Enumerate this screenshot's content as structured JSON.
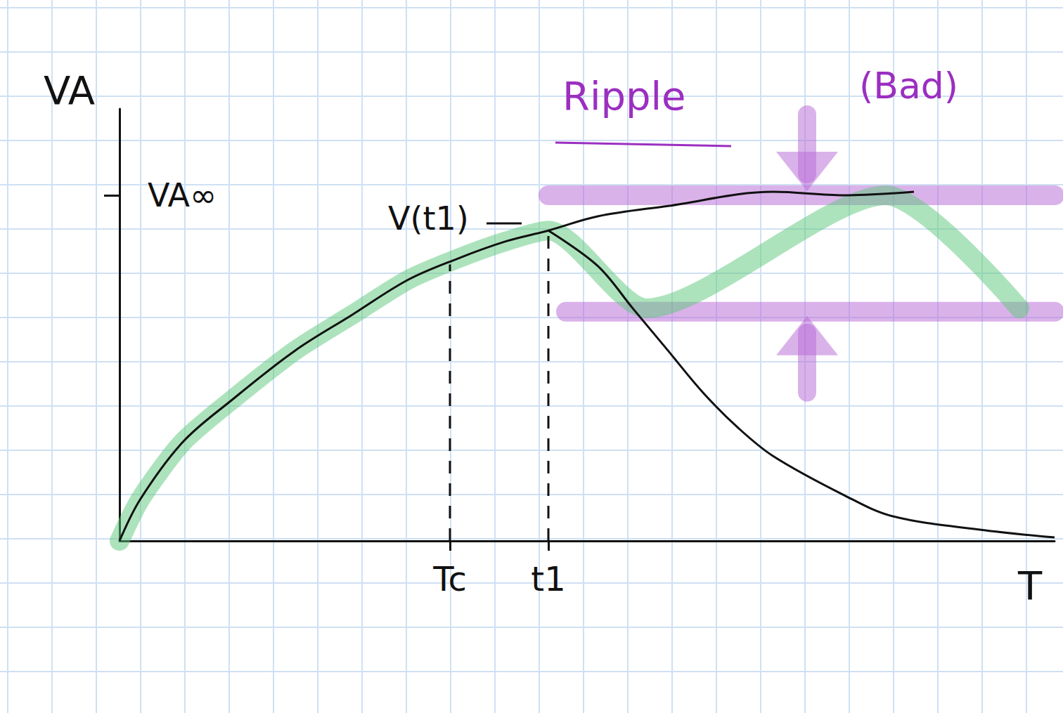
{
  "chart_data": {
    "type": "line",
    "x_label": "T",
    "y_label": "VA",
    "xlim": [
      0,
      13.3
    ],
    "ylim": [
      0,
      1.25
    ],
    "xticks": [
      {
        "value": 4.7,
        "label": "Tc"
      },
      {
        "value": 6.1,
        "label": "t1"
      }
    ],
    "yticks": [
      {
        "value": 1,
        "label": "VA∞"
      }
    ],
    "grid": false,
    "legend": false,
    "annotations": [
      {
        "text": "V(t1)",
        "color": "#111111"
      },
      {
        "text": "Ripple",
        "color": "#9b2fc0"
      },
      {
        "text": "(Bad)",
        "color": "#9b2fc0"
      }
    ],
    "series": [
      {
        "color": "#b566d6",
        "line_style": "highlight",
        "marker": "arrow_down",
        "x": [
          6.1,
          13.3
        ],
        "values": [
          1.0,
          1.0
        ]
      },
      {
        "color": "#b566d6",
        "line_style": "highlight",
        "marker": "arrow_up",
        "x": [
          6.35,
          13.3
        ],
        "values": [
          0.663,
          0.663
        ]
      },
      {
        "color": "#5cc87a",
        "line_style": "highlight",
        "marker": "none",
        "x": [
          0,
          0.3,
          0.9,
          1.6,
          2.5,
          3.3,
          4.1,
          4.8,
          5.5,
          6.1,
          7.5,
          10.9,
          12.8
        ],
        "values": [
          0,
          0.122,
          0.286,
          0.408,
          0.551,
          0.653,
          0.755,
          0.816,
          0.867,
          0.898,
          0.673,
          1.0,
          0.673
        ]
      },
      {
        "color": "#111111",
        "line_style": "dashed",
        "marker": "none",
        "x": [
          4.7,
          4.7
        ],
        "values": [
          0,
          0.8
        ]
      },
      {
        "color": "#111111",
        "line_style": "dashed",
        "marker": "none",
        "x": [
          6.1,
          6.1
        ],
        "values": [
          0,
          0.898
        ]
      },
      {
        "color": "#111111",
        "line_style": "solid",
        "marker": "none",
        "x": [
          0,
          0.3,
          0.9,
          1.6,
          2.5,
          3.3,
          4.1,
          4.8,
          5.5,
          6.1,
          6.8,
          7.8,
          9.3,
          10.3,
          11.3
        ],
        "values": [
          0,
          0.122,
          0.286,
          0.408,
          0.551,
          0.653,
          0.755,
          0.816,
          0.867,
          0.898,
          0.939,
          0.969,
          1.01,
          1.0,
          1.01
        ]
      },
      {
        "color": "#111111",
        "line_style": "solid",
        "marker": "none",
        "x": [
          6.1,
          6.8,
          7.3,
          7.8,
          8.3,
          8.8,
          9.3,
          10.3,
          11.0,
          12.3,
          13.3
        ],
        "values": [
          0.898,
          0.796,
          0.673,
          0.551,
          0.429,
          0.327,
          0.245,
          0.133,
          0.071,
          0.031,
          0.01
        ]
      }
    ]
  }
}
